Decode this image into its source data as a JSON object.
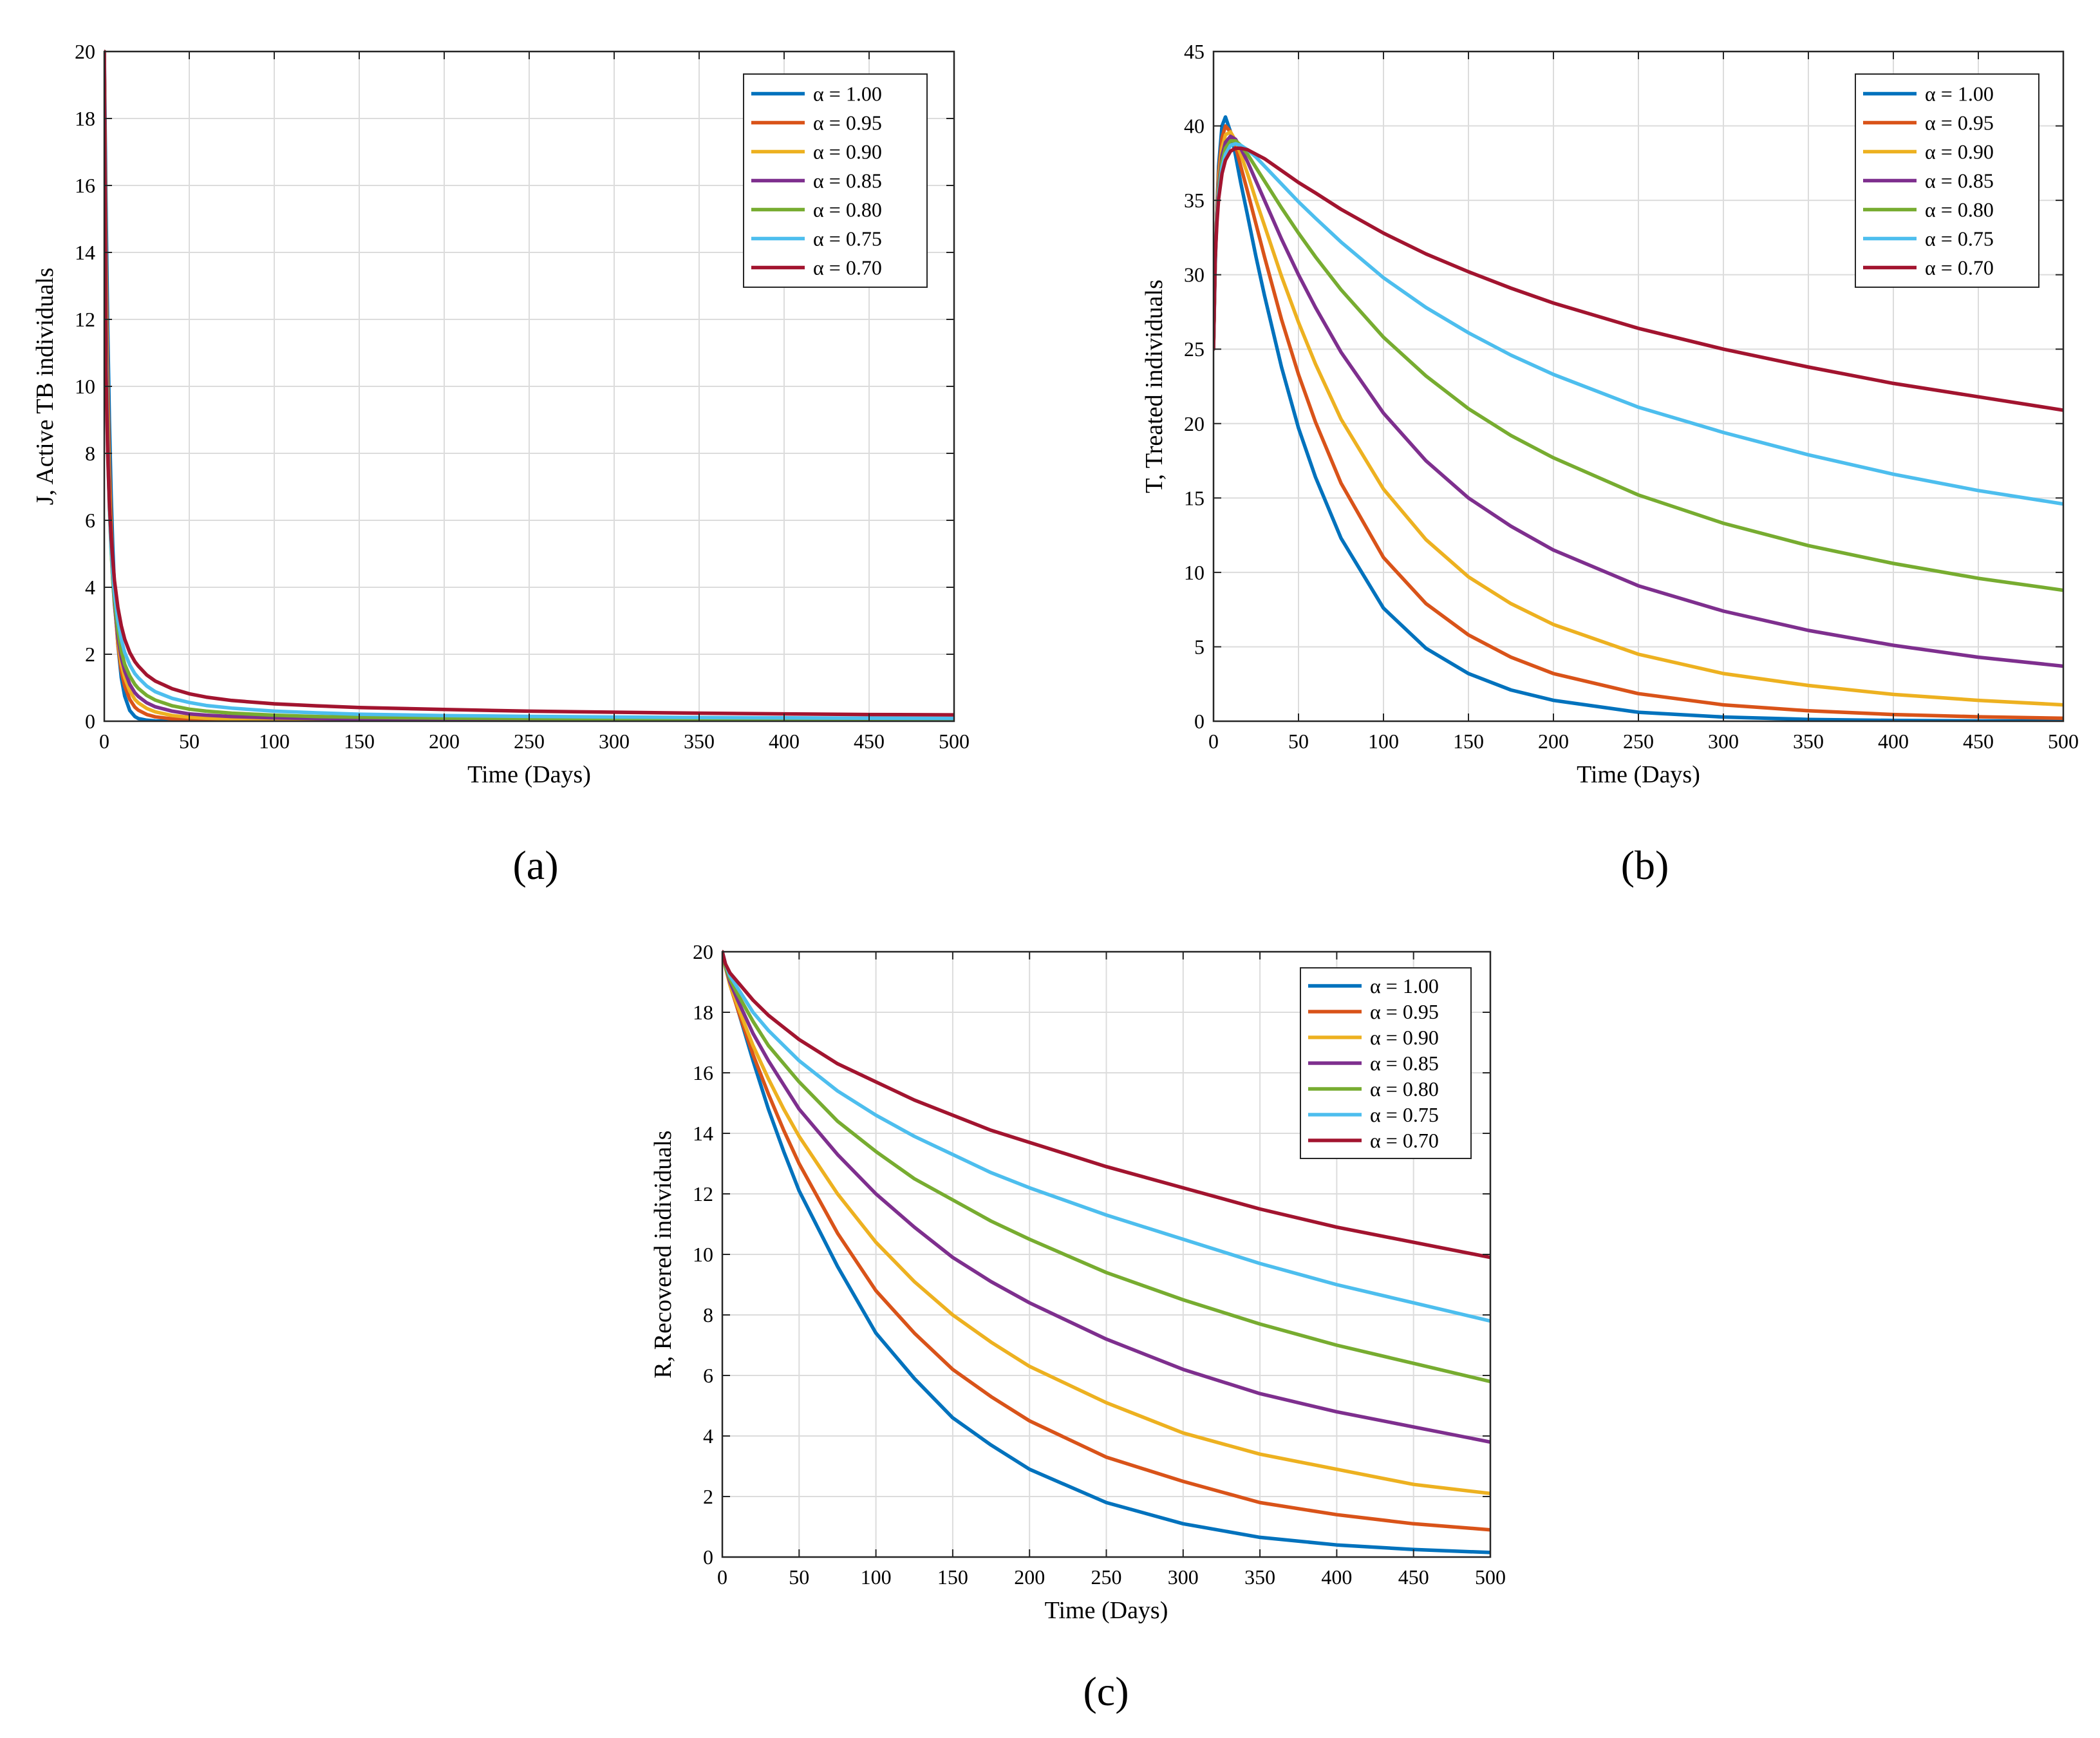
{
  "chart_data": [
    {
      "type": "line",
      "panel": "(a)",
      "xlabel": "Time (Days)",
      "ylabel": "J, Active TB individuals",
      "xlim": [
        0,
        500
      ],
      "ylim": [
        0,
        20
      ],
      "xticks": [
        0,
        50,
        100,
        150,
        200,
        250,
        300,
        350,
        400,
        450,
        500
      ],
      "yticks": [
        0,
        2,
        4,
        6,
        8,
        10,
        12,
        14,
        16,
        18,
        20
      ],
      "grid": true,
      "legend": "top-right",
      "x": [
        0,
        1,
        2,
        3,
        4,
        5,
        6,
        8,
        10,
        12,
        15,
        18,
        20,
        25,
        30,
        40,
        50,
        60,
        75,
        100,
        125,
        150,
        200,
        250,
        300,
        350,
        400,
        450,
        500
      ],
      "series": [
        {
          "name": "α = 1.00",
          "color": "#0072BD",
          "values": [
            20,
            15.5,
            11.8,
            9.0,
            6.8,
            5.2,
            4.0,
            2.3,
            1.3,
            0.75,
            0.32,
            0.14,
            0.08,
            0.03,
            0.01,
            0.004,
            0.002,
            0.001,
            0,
            0,
            0,
            0,
            0,
            0,
            0,
            0,
            0,
            0,
            0
          ]
        },
        {
          "name": "α = 0.95",
          "color": "#D95319",
          "values": [
            20,
            14.0,
            10.2,
            7.7,
            5.9,
            4.6,
            3.6,
            2.3,
            1.5,
            1.05,
            0.65,
            0.42,
            0.33,
            0.2,
            0.13,
            0.07,
            0.04,
            0.03,
            0.02,
            0.01,
            0.008,
            0.006,
            0.004,
            0.003,
            0.002,
            0.002,
            0.001,
            0.001,
            0.001
          ]
        },
        {
          "name": "α = 0.90",
          "color": "#EDB120",
          "values": [
            20,
            13.0,
            9.3,
            7.0,
            5.4,
            4.3,
            3.5,
            2.4,
            1.7,
            1.3,
            0.9,
            0.65,
            0.55,
            0.38,
            0.28,
            0.17,
            0.12,
            0.09,
            0.07,
            0.045,
            0.035,
            0.028,
            0.02,
            0.016,
            0.013,
            0.011,
            0.01,
            0.009,
            0.008
          ]
        },
        {
          "name": "α = 0.85",
          "color": "#7E2F8E",
          "values": [
            20,
            12.2,
            8.7,
            6.6,
            5.2,
            4.2,
            3.5,
            2.5,
            1.9,
            1.5,
            1.1,
            0.85,
            0.74,
            0.55,
            0.43,
            0.3,
            0.22,
            0.18,
            0.14,
            0.1,
            0.08,
            0.065,
            0.05,
            0.04,
            0.035,
            0.03,
            0.027,
            0.025,
            0.022
          ]
        },
        {
          "name": "α = 0.80",
          "color": "#77AC30",
          "values": [
            20,
            11.5,
            8.3,
            6.4,
            5.1,
            4.2,
            3.6,
            2.7,
            2.1,
            1.7,
            1.35,
            1.1,
            0.98,
            0.77,
            0.63,
            0.46,
            0.36,
            0.3,
            0.24,
            0.18,
            0.14,
            0.12,
            0.095,
            0.08,
            0.07,
            0.06,
            0.055,
            0.05,
            0.045
          ]
        },
        {
          "name": "α = 0.75",
          "color": "#4DBEEE",
          "values": [
            20,
            11.0,
            8.1,
            6.4,
            5.2,
            4.4,
            3.8,
            3.0,
            2.45,
            2.05,
            1.68,
            1.42,
            1.3,
            1.05,
            0.88,
            0.68,
            0.56,
            0.47,
            0.39,
            0.3,
            0.25,
            0.21,
            0.17,
            0.145,
            0.125,
            0.11,
            0.1,
            0.09,
            0.085
          ]
        },
        {
          "name": "α = 0.70",
          "color": "#A2142F",
          "values": [
            20,
            10.5,
            8.0,
            6.5,
            5.5,
            4.8,
            4.2,
            3.4,
            2.85,
            2.45,
            2.05,
            1.78,
            1.65,
            1.38,
            1.2,
            0.97,
            0.82,
            0.72,
            0.62,
            0.52,
            0.46,
            0.41,
            0.35,
            0.3,
            0.27,
            0.24,
            0.22,
            0.2,
            0.19
          ]
        }
      ]
    },
    {
      "type": "line",
      "panel": "(b)",
      "xlabel": "Time (Days)",
      "ylabel": "T, Treated individuals",
      "xlim": [
        0,
        500
      ],
      "ylim": [
        0,
        45
      ],
      "xticks": [
        0,
        50,
        100,
        150,
        200,
        250,
        300,
        350,
        400,
        450,
        500
      ],
      "yticks": [
        0,
        5,
        10,
        15,
        20,
        25,
        30,
        35,
        40,
        45
      ],
      "grid": true,
      "legend": "top-right",
      "x": [
        0,
        1,
        2,
        3,
        5,
        7,
        10,
        13,
        16,
        20,
        25,
        30,
        40,
        50,
        60,
        75,
        100,
        125,
        150,
        175,
        200,
        250,
        300,
        350,
        400,
        450,
        500
      ],
      "series": [
        {
          "name": "α = 1.00",
          "color": "#0072BD",
          "values": [
            25,
            30.5,
            34.5,
            37.3,
            40.0,
            40.6,
            39.6,
            38.0,
            36.2,
            34.0,
            31.2,
            28.6,
            23.8,
            19.7,
            16.4,
            12.3,
            7.6,
            4.9,
            3.2,
            2.1,
            1.4,
            0.6,
            0.28,
            0.12,
            0.05,
            0.02,
            0.01
          ]
        },
        {
          "name": "α = 0.95",
          "color": "#D95319",
          "values": [
            25,
            30.8,
            34.4,
            36.8,
            39.2,
            40.0,
            39.6,
            38.6,
            37.3,
            35.6,
            33.4,
            31.2,
            27.0,
            23.3,
            20.1,
            16.0,
            11.0,
            7.9,
            5.8,
            4.3,
            3.2,
            1.85,
            1.1,
            0.7,
            0.45,
            0.3,
            0.2
          ]
        },
        {
          "name": "α = 0.90",
          "color": "#EDB120",
          "values": [
            25,
            31.0,
            34.3,
            36.4,
            38.5,
            39.4,
            39.6,
            39.0,
            38.1,
            36.8,
            35.0,
            33.3,
            29.9,
            26.8,
            24.0,
            20.3,
            15.6,
            12.2,
            9.7,
            7.9,
            6.5,
            4.5,
            3.2,
            2.4,
            1.8,
            1.4,
            1.1
          ]
        },
        {
          "name": "α = 0.85",
          "color": "#7E2F8E",
          "values": [
            25,
            31.1,
            34.1,
            36.0,
            38.0,
            38.9,
            39.3,
            39.1,
            38.5,
            37.6,
            36.3,
            35.0,
            32.4,
            30.0,
            27.8,
            24.8,
            20.7,
            17.5,
            15.0,
            13.1,
            11.5,
            9.1,
            7.4,
            6.1,
            5.1,
            4.3,
            3.7
          ]
        },
        {
          "name": "α = 0.80",
          "color": "#77AC30",
          "values": [
            25,
            31.2,
            33.9,
            35.7,
            37.6,
            38.5,
            39.0,
            39.0,
            38.7,
            38.1,
            37.2,
            36.3,
            34.5,
            32.8,
            31.2,
            29.0,
            25.8,
            23.2,
            21.0,
            19.2,
            17.7,
            15.2,
            13.3,
            11.8,
            10.6,
            9.6,
            8.8
          ]
        },
        {
          "name": "α = 0.75",
          "color": "#4DBEEE",
          "values": [
            25,
            31.2,
            33.7,
            35.4,
            37.2,
            38.1,
            38.7,
            38.8,
            38.7,
            38.4,
            37.9,
            37.3,
            36.1,
            34.9,
            33.8,
            32.2,
            29.8,
            27.8,
            26.1,
            24.6,
            23.3,
            21.1,
            19.4,
            17.9,
            16.6,
            15.5,
            14.6
          ]
        },
        {
          "name": "α = 0.70",
          "color": "#A2142F",
          "values": [
            25,
            31.1,
            33.5,
            35.1,
            36.8,
            37.7,
            38.3,
            38.5,
            38.5,
            38.4,
            38.1,
            37.8,
            37.0,
            36.2,
            35.5,
            34.4,
            32.8,
            31.4,
            30.2,
            29.1,
            28.1,
            26.4,
            25.0,
            23.8,
            22.7,
            21.8,
            20.9
          ]
        }
      ]
    },
    {
      "type": "line",
      "panel": "(c)",
      "xlabel": "Time (Days)",
      "ylabel": "R, Recovered individuals",
      "xlim": [
        0,
        500
      ],
      "ylim": [
        0,
        20
      ],
      "xticks": [
        0,
        50,
        100,
        150,
        200,
        250,
        300,
        350,
        400,
        450,
        500
      ],
      "yticks": [
        0,
        2,
        4,
        6,
        8,
        10,
        12,
        14,
        16,
        18,
        20
      ],
      "grid": true,
      "legend": "top-right",
      "x": [
        0,
        2,
        5,
        10,
        20,
        30,
        40,
        50,
        75,
        100,
        125,
        150,
        175,
        200,
        250,
        300,
        350,
        400,
        450,
        500
      ],
      "series": [
        {
          "name": "α = 1.00",
          "color": "#0072BD",
          "values": [
            20,
            19.6,
            19.0,
            18.1,
            16.4,
            14.8,
            13.4,
            12.1,
            9.6,
            7.4,
            5.9,
            4.6,
            3.7,
            2.9,
            1.8,
            1.1,
            0.65,
            0.4,
            0.25,
            0.15
          ]
        },
        {
          "name": "α = 0.95",
          "color": "#D95319",
          "values": [
            20,
            19.5,
            18.9,
            18.1,
            16.6,
            15.3,
            14.1,
            13.0,
            10.7,
            8.8,
            7.4,
            6.2,
            5.3,
            4.5,
            3.3,
            2.5,
            1.8,
            1.4,
            1.1,
            0.9
          ]
        },
        {
          "name": "α = 0.90",
          "color": "#EDB120",
          "values": [
            20,
            19.5,
            18.9,
            18.2,
            16.9,
            15.8,
            14.8,
            13.9,
            12.0,
            10.4,
            9.1,
            8.0,
            7.1,
            6.3,
            5.1,
            4.1,
            3.4,
            2.9,
            2.4,
            2.1
          ]
        },
        {
          "name": "α = 0.85",
          "color": "#7E2F8E",
          "values": [
            20,
            19.5,
            19.0,
            18.4,
            17.3,
            16.4,
            15.6,
            14.8,
            13.3,
            12.0,
            10.9,
            9.9,
            9.1,
            8.4,
            7.2,
            6.2,
            5.4,
            4.8,
            4.3,
            3.8
          ]
        },
        {
          "name": "α = 0.80",
          "color": "#77AC30",
          "values": [
            20,
            19.5,
            19.1,
            18.6,
            17.7,
            16.9,
            16.3,
            15.7,
            14.4,
            13.4,
            12.5,
            11.8,
            11.1,
            10.5,
            9.4,
            8.5,
            7.7,
            7.0,
            6.4,
            5.8
          ]
        },
        {
          "name": "α = 0.75",
          "color": "#4DBEEE",
          "values": [
            20,
            19.6,
            19.2,
            18.8,
            18.0,
            17.4,
            16.9,
            16.4,
            15.4,
            14.6,
            13.9,
            13.3,
            12.7,
            12.2,
            11.3,
            10.5,
            9.7,
            9.0,
            8.4,
            7.8
          ]
        },
        {
          "name": "α = 0.70",
          "color": "#A2142F",
          "values": [
            20,
            19.6,
            19.3,
            19.0,
            18.4,
            17.9,
            17.5,
            17.1,
            16.3,
            15.7,
            15.1,
            14.6,
            14.1,
            13.7,
            12.9,
            12.2,
            11.5,
            10.9,
            10.4,
            9.9
          ]
        }
      ]
    }
  ]
}
